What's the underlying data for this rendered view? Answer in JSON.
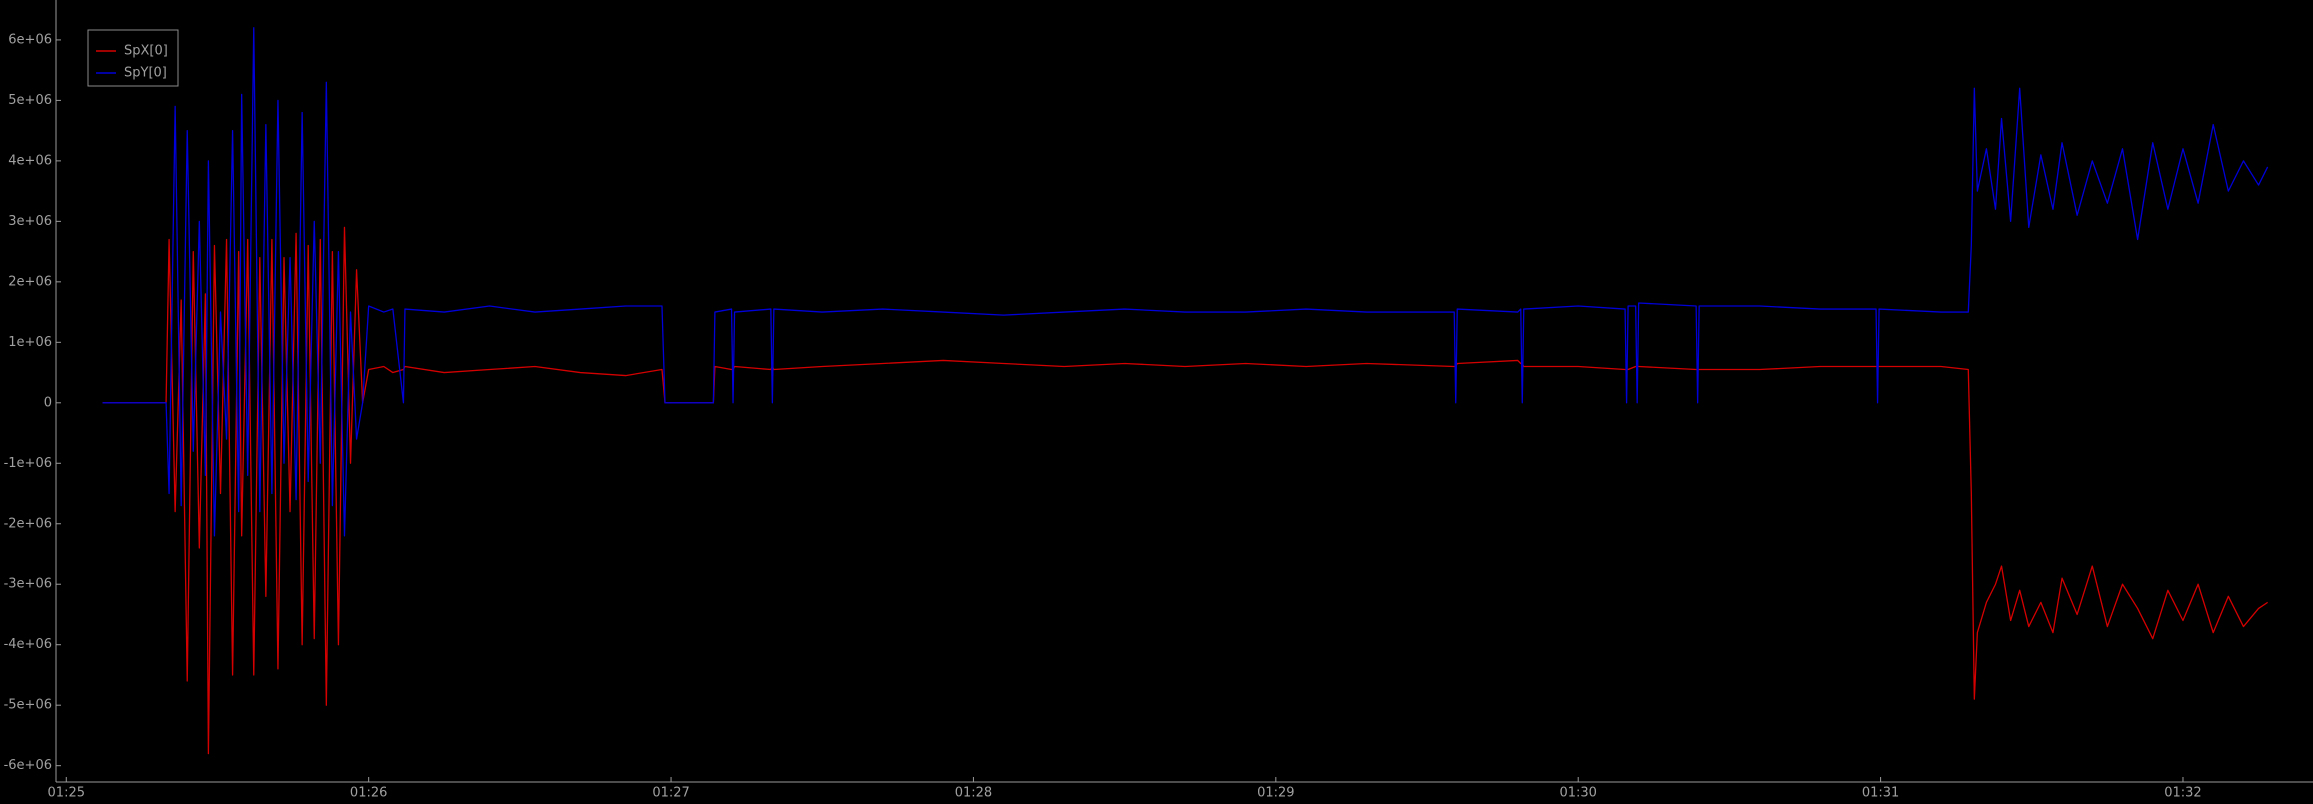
{
  "chart_data": {
    "type": "line",
    "legend": "upper left",
    "xlim": [
      84.966,
      92.43
    ],
    "ylim": [
      -6270000,
      6660000
    ],
    "xticks": [
      {
        "value": 85,
        "label": "01:25"
      },
      {
        "value": 86,
        "label": "01:26"
      },
      {
        "value": 87,
        "label": "01:27"
      },
      {
        "value": 88,
        "label": "01:28"
      },
      {
        "value": 89,
        "label": "01:29"
      },
      {
        "value": 90,
        "label": "01:30"
      },
      {
        "value": 91,
        "label": "01:31"
      },
      {
        "value": 92,
        "label": "01:32"
      }
    ],
    "yticks": [
      {
        "value": 6000000,
        "label": "6e+06"
      },
      {
        "value": 5000000,
        "label": "5e+06"
      },
      {
        "value": 4000000,
        "label": "4e+06"
      },
      {
        "value": 3000000,
        "label": "3e+06"
      },
      {
        "value": 2000000,
        "label": "2e+06"
      },
      {
        "value": 1000000,
        "label": "1e+06"
      },
      0,
      {
        "value": -1000000,
        "label": "-1e+06"
      },
      {
        "value": -2000000,
        "label": "-2e+06"
      },
      {
        "value": -3000000,
        "label": "-3e+06"
      },
      {
        "value": -4000000,
        "label": "-4e+06"
      },
      {
        "value": -5000000,
        "label": "-5e+06"
      },
      {
        "value": -6000000,
        "label": "-6e+06"
      }
    ],
    "x": [
      85.12,
      85.33,
      85.34,
      85.36,
      85.38,
      85.4,
      85.42,
      85.44,
      85.46,
      85.47,
      85.49,
      85.51,
      85.53,
      85.55,
      85.57,
      85.58,
      85.6,
      85.62,
      85.64,
      85.66,
      85.68,
      85.7,
      85.72,
      85.74,
      85.76,
      85.78,
      85.8,
      85.82,
      85.84,
      85.86,
      85.88,
      85.9,
      85.92,
      85.94,
      85.96,
      85.98,
      86,
      86.05,
      86.08,
      86.115,
      86.12,
      86.25,
      86.4,
      86.55,
      86.7,
      86.85,
      86.97,
      86.98,
      87.14,
      87.145,
      87.2,
      87.205,
      87.21,
      87.33,
      87.335,
      87.34,
      87.5,
      87.7,
      87.9,
      88.1,
      88.3,
      88.5,
      88.7,
      88.9,
      89.1,
      89.3,
      89.59,
      89.595,
      89.6,
      89.8,
      89.81,
      89.815,
      89.82,
      90,
      90.155,
      90.16,
      90.165,
      90.19,
      90.195,
      90.2,
      90.39,
      90.395,
      90.4,
      90.6,
      90.8,
      90.985,
      90.99,
      90.995,
      91.2,
      91.29,
      91.3,
      91.31,
      91.32,
      91.35,
      91.38,
      91.4,
      91.43,
      91.46,
      91.49,
      91.53,
      91.57,
      91.6,
      91.65,
      91.7,
      91.75,
      91.8,
      91.85,
      91.9,
      91.95,
      92,
      92.05,
      92.1,
      92.15,
      92.2,
      92.25,
      92.28
    ],
    "series": [
      {
        "name": "SpX[0]",
        "color": "#d40000",
        "values": [
          0,
          0,
          2700000,
          -1800000,
          1700000,
          -4600000,
          2500000,
          -2400000,
          1800000,
          -5800000,
          2600000,
          -1500000,
          2700000,
          -4500000,
          2500000,
          -2200000,
          2700000,
          -4500000,
          2400000,
          -3200000,
          2700000,
          -4400000,
          2400000,
          -1800000,
          2800000,
          -4000000,
          2600000,
          -3900000,
          2700000,
          -5000000,
          2500000,
          -4000000,
          2900000,
          -1000000,
          2200000,
          0,
          550000,
          600000,
          500000,
          550000,
          600000,
          500000,
          550000,
          600000,
          500000,
          450000,
          550000,
          0,
          0,
          600000,
          550000,
          550000,
          600000,
          550000,
          600000,
          550000,
          600000,
          650000,
          700000,
          650000,
          600000,
          650000,
          600000,
          650000,
          600000,
          650000,
          600000,
          600000,
          650000,
          700000,
          650000,
          650000,
          600000,
          600000,
          550000,
          550000,
          550000,
          600000,
          600000,
          600000,
          550000,
          550000,
          550000,
          550000,
          600000,
          600000,
          600000,
          600000,
          600000,
          550000,
          -1500000,
          -4900000,
          -3800000,
          -3300000,
          -3000000,
          -2700000,
          -3600000,
          -3100000,
          -3700000,
          -3300000,
          -3800000,
          -2900000,
          -3500000,
          -2700000,
          -3700000,
          -3000000,
          -3400000,
          -3900000,
          -3100000,
          -3600000,
          -3000000,
          -3800000,
          -3200000,
          -3700000,
          -3400000,
          -3300000
        ]
      },
      {
        "name": "SpY[0]",
        "color": "#0000d8",
        "values": [
          0,
          0,
          -1500000,
          4900000,
          -1700000,
          4500000,
          -800000,
          3000000,
          -1200000,
          4000000,
          -2200000,
          1500000,
          -600000,
          4500000,
          -1800000,
          5100000,
          -1200000,
          6200000,
          -1800000,
          4600000,
          -1500000,
          5000000,
          -1000000,
          2400000,
          -1600000,
          4800000,
          -1300000,
          3000000,
          -1000000,
          5300000,
          -1700000,
          2500000,
          -2200000,
          1500000,
          -600000,
          0,
          1600000,
          1500000,
          1550000,
          0,
          1550000,
          1500000,
          1600000,
          1500000,
          1550000,
          1600000,
          1600000,
          0,
          0,
          1500000,
          1550000,
          0,
          1500000,
          1550000,
          0,
          1550000,
          1500000,
          1550000,
          1500000,
          1450000,
          1500000,
          1550000,
          1500000,
          1500000,
          1550000,
          1500000,
          1500000,
          0,
          1550000,
          1500000,
          1550000,
          0,
          1550000,
          1600000,
          1550000,
          0,
          1600000,
          1600000,
          0,
          1650000,
          1600000,
          0,
          1600000,
          1600000,
          1550000,
          1550000,
          0,
          1550000,
          1500000,
          1500000,
          2600000,
          5200000,
          3500000,
          4200000,
          3200000,
          4700000,
          3000000,
          5200000,
          2900000,
          4100000,
          3200000,
          4300000,
          3100000,
          4000000,
          3300000,
          4200000,
          2700000,
          4300000,
          3200000,
          4200000,
          3300000,
          4600000,
          3500000,
          4000000,
          3600000,
          3900000
        ]
      }
    ]
  }
}
